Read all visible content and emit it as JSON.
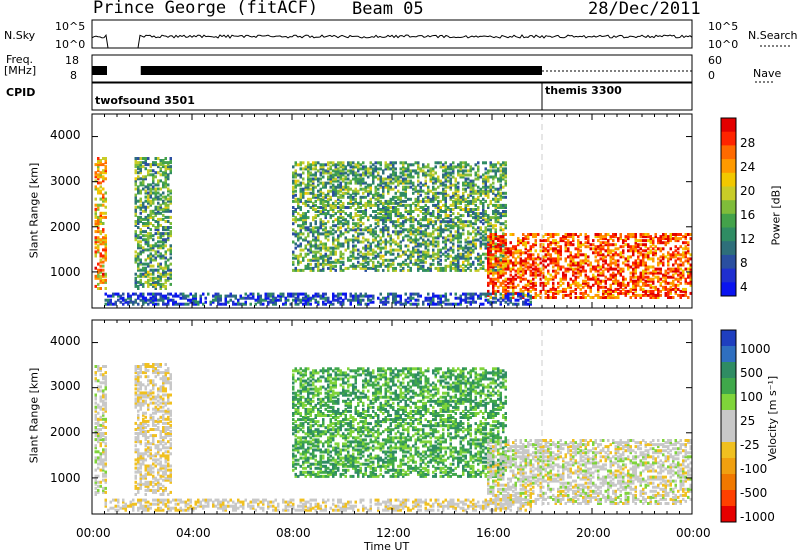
{
  "header": {
    "station": "Prince George (fitACF)",
    "beam": "Beam 05",
    "date": "28/Dec/2011"
  },
  "top_panels": {
    "nsky_label": "N.Sky",
    "nsky_ticks": [
      "10^5",
      "10^0"
    ],
    "nsearch_label": "N.Search",
    "nsearch_ticks": [
      "10^5",
      "10^0"
    ],
    "freq_label_line1": "Freq.",
    "freq_label_line2": "[MHz]",
    "freq_ticks": [
      "18",
      "8"
    ],
    "nave_label": "Nave",
    "nave_ticks": [
      "60",
      "0"
    ],
    "cpid_label": "CPID",
    "cpid_segments": [
      {
        "name": "twofsound 3501",
        "start_hour": 0,
        "end_hour": 18
      },
      {
        "name": "themis 3300",
        "start_hour": 18,
        "end_hour": 24
      }
    ]
  },
  "power_colorbar": {
    "label": "Power [dB]",
    "ticks": [
      "28",
      "24",
      "20",
      "16",
      "12",
      "8",
      "4"
    ],
    "colors": [
      "#e30000",
      "#ff2400",
      "#ff6a00",
      "#ff9a00",
      "#f2c800",
      "#c8cc28",
      "#7fbc3a",
      "#43a24a",
      "#2f8c63",
      "#2e6f7a",
      "#2a4fa0",
      "#1f2fd0",
      "#0a14f0"
    ]
  },
  "velocity_colorbar": {
    "label": "Velocity [m s⁻¹]",
    "ticks": [
      "1000",
      "500",
      "100",
      "25",
      "-25",
      "-100",
      "-500",
      "-1000"
    ],
    "colors": [
      "#1f3fbf",
      "#2f6fc0",
      "#2f8c63",
      "#3fa84a",
      "#7fd43a",
      "#c8c8c8",
      "#c8c8c8",
      "#f0c020",
      "#f0a010",
      "#f07800",
      "#ff4000",
      "#e60000"
    ]
  },
  "chart_data": [
    {
      "type": "heatmap",
      "panel": "power",
      "ylabel": "Slant Range [km]",
      "ylim": [
        200,
        4500
      ],
      "yticks": [
        "4000",
        "3000",
        "2000",
        "1000"
      ],
      "xlim": [
        0,
        24
      ],
      "grid": false,
      "echo_regions": [
        {
          "hour_start": 0.1,
          "hour_end": 0.6,
          "range_start": 600,
          "range_end": 3500,
          "power_db": 24
        },
        {
          "hour_start": 1.7,
          "hour_end": 3.2,
          "range_start": 600,
          "range_end": 3500,
          "power_db": 14
        },
        {
          "hour_start": 8.0,
          "hour_end": 16.5,
          "range_start": 1000,
          "range_end": 3400,
          "power_db": 14
        },
        {
          "hour_start": 15.8,
          "hour_end": 24.0,
          "range_start": 400,
          "range_end": 1800,
          "power_db": 28
        },
        {
          "hour_start": 0.5,
          "hour_end": 17.5,
          "range_start": 250,
          "range_end": 500,
          "power_db": 6
        }
      ]
    },
    {
      "type": "heatmap",
      "panel": "velocity",
      "ylabel": "Slant Range [km]",
      "xlabel": "Time UT",
      "ylim": [
        200,
        4500
      ],
      "yticks": [
        "4000",
        "3000",
        "2000",
        "1000"
      ],
      "xlim": [
        0,
        24
      ],
      "xticks": [
        "00:00",
        "04:00",
        "08:00",
        "12:00",
        "16:00",
        "20:00",
        "00:00"
      ],
      "grid": false,
      "echo_regions": [
        {
          "hour_start": 0.1,
          "hour_end": 0.6,
          "range_start": 600,
          "range_end": 3500,
          "velocity": 0
        },
        {
          "hour_start": 1.7,
          "hour_end": 3.2,
          "range_start": 600,
          "range_end": 3500,
          "velocity": -100
        },
        {
          "hour_start": 8.0,
          "hour_end": 16.5,
          "range_start": 1000,
          "range_end": 3400,
          "velocity": 500
        },
        {
          "hour_start": 15.8,
          "hour_end": 24.0,
          "range_start": 400,
          "range_end": 1800,
          "velocity": 0
        },
        {
          "hour_start": 0.5,
          "hour_end": 17.5,
          "range_start": 250,
          "range_end": 500,
          "velocity": -100
        }
      ]
    }
  ]
}
